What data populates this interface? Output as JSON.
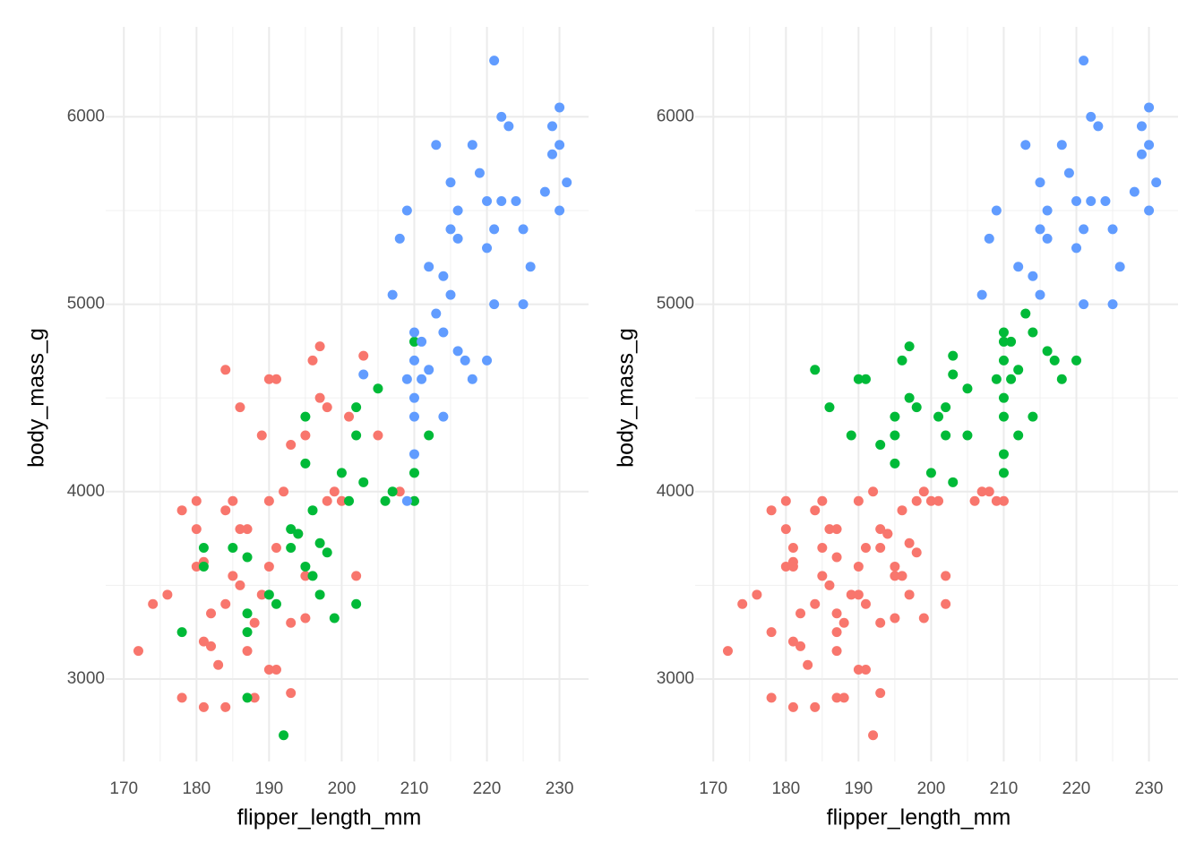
{
  "chart_data": [
    {
      "type": "scatter",
      "x_label": "flipper_length_mm",
      "y_label": "body_mass_g",
      "xlim": [
        167.5,
        234
      ],
      "ylim": [
        2560,
        6480
      ],
      "xticks": [
        170,
        180,
        190,
        200,
        210,
        220,
        230
      ],
      "yticks": [
        3000,
        4000,
        5000,
        6000
      ],
      "x_minor_ticks": [
        175,
        185,
        195,
        205,
        215,
        225
      ],
      "y_minor_ticks": [
        3500,
        4500,
        5500
      ],
      "grid": true,
      "series": [
        {
          "color": "#F8766D",
          "x": [
            172,
            174,
            176,
            178,
            178,
            180,
            180,
            180,
            181,
            181,
            182,
            183,
            184,
            184,
            184,
            185,
            185,
            186,
            186,
            187,
            187,
            188,
            188,
            189,
            190,
            190,
            190,
            190,
            191,
            191,
            192,
            193,
            193,
            194,
            195,
            195,
            196,
            197,
            197,
            198,
            198,
            199,
            200,
            201,
            202,
            203,
            205,
            208,
            186,
            189,
            191,
            193,
            195,
            184,
            182,
            181
          ],
          "values": [
            3150,
            3400,
            3450,
            3900,
            2900,
            3950,
            3800,
            3600,
            2850,
            3200,
            3175,
            3075,
            3900,
            4650,
            2850,
            3950,
            3550,
            4450,
            3500,
            3800,
            3150,
            3300,
            2900,
            4300,
            3950,
            3050,
            4600,
            3600,
            4600,
            3050,
            4000,
            4250,
            2925,
            3775,
            4300,
            3550,
            4700,
            4775,
            4500,
            3950,
            4450,
            4000,
            3950,
            4400,
            3550,
            4725,
            4300,
            4000,
            3800,
            3450,
            3700,
            3300,
            3325,
            3400,
            3350,
            3625
          ]
        },
        {
          "color": "#00BA38",
          "x": [
            178,
            181,
            181,
            185,
            187,
            187,
            187,
            187,
            190,
            191,
            192,
            193,
            194,
            195,
            195,
            196,
            196,
            197,
            198,
            199,
            200,
            201,
            202,
            202,
            202,
            203,
            205,
            206,
            207,
            210,
            210,
            212,
            210,
            195,
            193,
            197
          ],
          "values": [
            3250,
            3700,
            3600,
            3700,
            3650,
            3350,
            2900,
            3250,
            3450,
            3400,
            2700,
            3800,
            3775,
            4400,
            4150,
            3900,
            3550,
            3450,
            3675,
            3325,
            4100,
            3950,
            4450,
            4300,
            3400,
            4050,
            4550,
            3950,
            4000,
            4100,
            3950,
            4300,
            4800,
            3600,
            3700,
            3725
          ]
        },
        {
          "color": "#619CFF",
          "x": [
            203,
            207,
            208,
            209,
            209,
            210,
            210,
            210,
            210,
            211,
            211,
            212,
            212,
            213,
            213,
            214,
            214,
            215,
            215,
            215,
            216,
            216,
            217,
            218,
            218,
            219,
            220,
            220,
            220,
            221,
            221,
            221,
            222,
            222,
            223,
            224,
            225,
            225,
            226,
            228,
            229,
            229,
            230,
            230,
            230,
            231,
            209,
            210,
            216,
            214
          ],
          "values": [
            4625,
            5050,
            5350,
            5500,
            4600,
            4700,
            4500,
            4200,
            4850,
            4800,
            4600,
            5200,
            4650,
            4950,
            5850,
            4400,
            4850,
            5400,
            5650,
            5050,
            5500,
            4750,
            4700,
            5850,
            4600,
            5700,
            5300,
            5550,
            4700,
            6300,
            5000,
            5400,
            6000,
            5550,
            5950,
            5550,
            5400,
            5000,
            5200,
            5600,
            5800,
            5950,
            6050,
            5850,
            5500,
            5650,
            3950,
            4400,
            5350,
            5150
          ]
        }
      ]
    },
    {
      "type": "scatter",
      "x_label": "flipper_length_mm",
      "y_label": "body_mass_g",
      "xlim": [
        167.5,
        234
      ],
      "ylim": [
        2560,
        6480
      ],
      "xticks": [
        170,
        180,
        190,
        200,
        210,
        220,
        230
      ],
      "yticks": [
        3000,
        4000,
        5000,
        6000
      ],
      "x_minor_ticks": [
        175,
        185,
        195,
        205,
        215,
        225
      ],
      "y_minor_ticks": [
        3500,
        4500,
        5500
      ],
      "grid": true,
      "series": [
        {
          "color": "#F8766D",
          "x": [
            172,
            174,
            176,
            178,
            178,
            180,
            180,
            180,
            181,
            181,
            182,
            183,
            184,
            184,
            185,
            185,
            186,
            187,
            187,
            188,
            188,
            190,
            190,
            190,
            191,
            192,
            193,
            194,
            195,
            198,
            199,
            200,
            202,
            208,
            186,
            189,
            191,
            193,
            195,
            184,
            182,
            181,
            178,
            181,
            181,
            185,
            187,
            187,
            187,
            187,
            190,
            191,
            192,
            193,
            194,
            196,
            196,
            197,
            198,
            199,
            201,
            202,
            206,
            207,
            210,
            195,
            193,
            197,
            209
          ],
          "values": [
            3150,
            3400,
            3450,
            3900,
            2900,
            3950,
            3800,
            3600,
            2850,
            3200,
            3175,
            3075,
            3900,
            2850,
            3950,
            3550,
            3500,
            3800,
            3150,
            3300,
            2900,
            3950,
            3050,
            3600,
            3050,
            4000,
            2925,
            3775,
            3550,
            3950,
            4000,
            3950,
            3550,
            4000,
            3800,
            3450,
            3700,
            3300,
            3325,
            3400,
            3350,
            3625,
            3250,
            3700,
            3600,
            3700,
            3650,
            3350,
            2900,
            3250,
            3450,
            3400,
            2700,
            3800,
            3775,
            3900,
            3550,
            3450,
            3675,
            3325,
            3950,
            3400,
            3950,
            4000,
            3950,
            3600,
            3700,
            3725,
            3950
          ]
        },
        {
          "color": "#00BA38",
          "x": [
            184,
            186,
            189,
            190,
            191,
            193,
            195,
            196,
            197,
            197,
            198,
            201,
            203,
            205,
            195,
            195,
            200,
            202,
            202,
            203,
            205,
            210,
            212,
            210,
            203,
            209,
            210,
            210,
            210,
            210,
            211,
            211,
            212,
            213,
            214,
            214,
            216,
            217,
            218,
            220,
            210
          ],
          "values": [
            4650,
            4450,
            4300,
            4600,
            4600,
            4250,
            4300,
            4700,
            4775,
            4500,
            4450,
            4400,
            4725,
            4300,
            4400,
            4150,
            4100,
            4450,
            4300,
            4050,
            4550,
            4100,
            4300,
            4800,
            4625,
            4600,
            4700,
            4500,
            4200,
            4850,
            4800,
            4600,
            4650,
            4950,
            4400,
            4850,
            4750,
            4700,
            4600,
            4700,
            4400
          ]
        },
        {
          "color": "#619CFF",
          "x": [
            207,
            208,
            209,
            212,
            213,
            215,
            215,
            215,
            216,
            218,
            219,
            220,
            220,
            221,
            221,
            221,
            222,
            222,
            223,
            224,
            225,
            225,
            226,
            228,
            229,
            229,
            230,
            230,
            230,
            231,
            216,
            214
          ],
          "values": [
            5050,
            5350,
            5500,
            5200,
            5850,
            5400,
            5650,
            5050,
            5500,
            5850,
            5700,
            5300,
            5550,
            6300,
            5000,
            5400,
            6000,
            5550,
            5950,
            5550,
            5400,
            5000,
            5200,
            5600,
            5800,
            5950,
            6050,
            5850,
            5500,
            5650,
            5350,
            5150
          ]
        }
      ]
    }
  ]
}
